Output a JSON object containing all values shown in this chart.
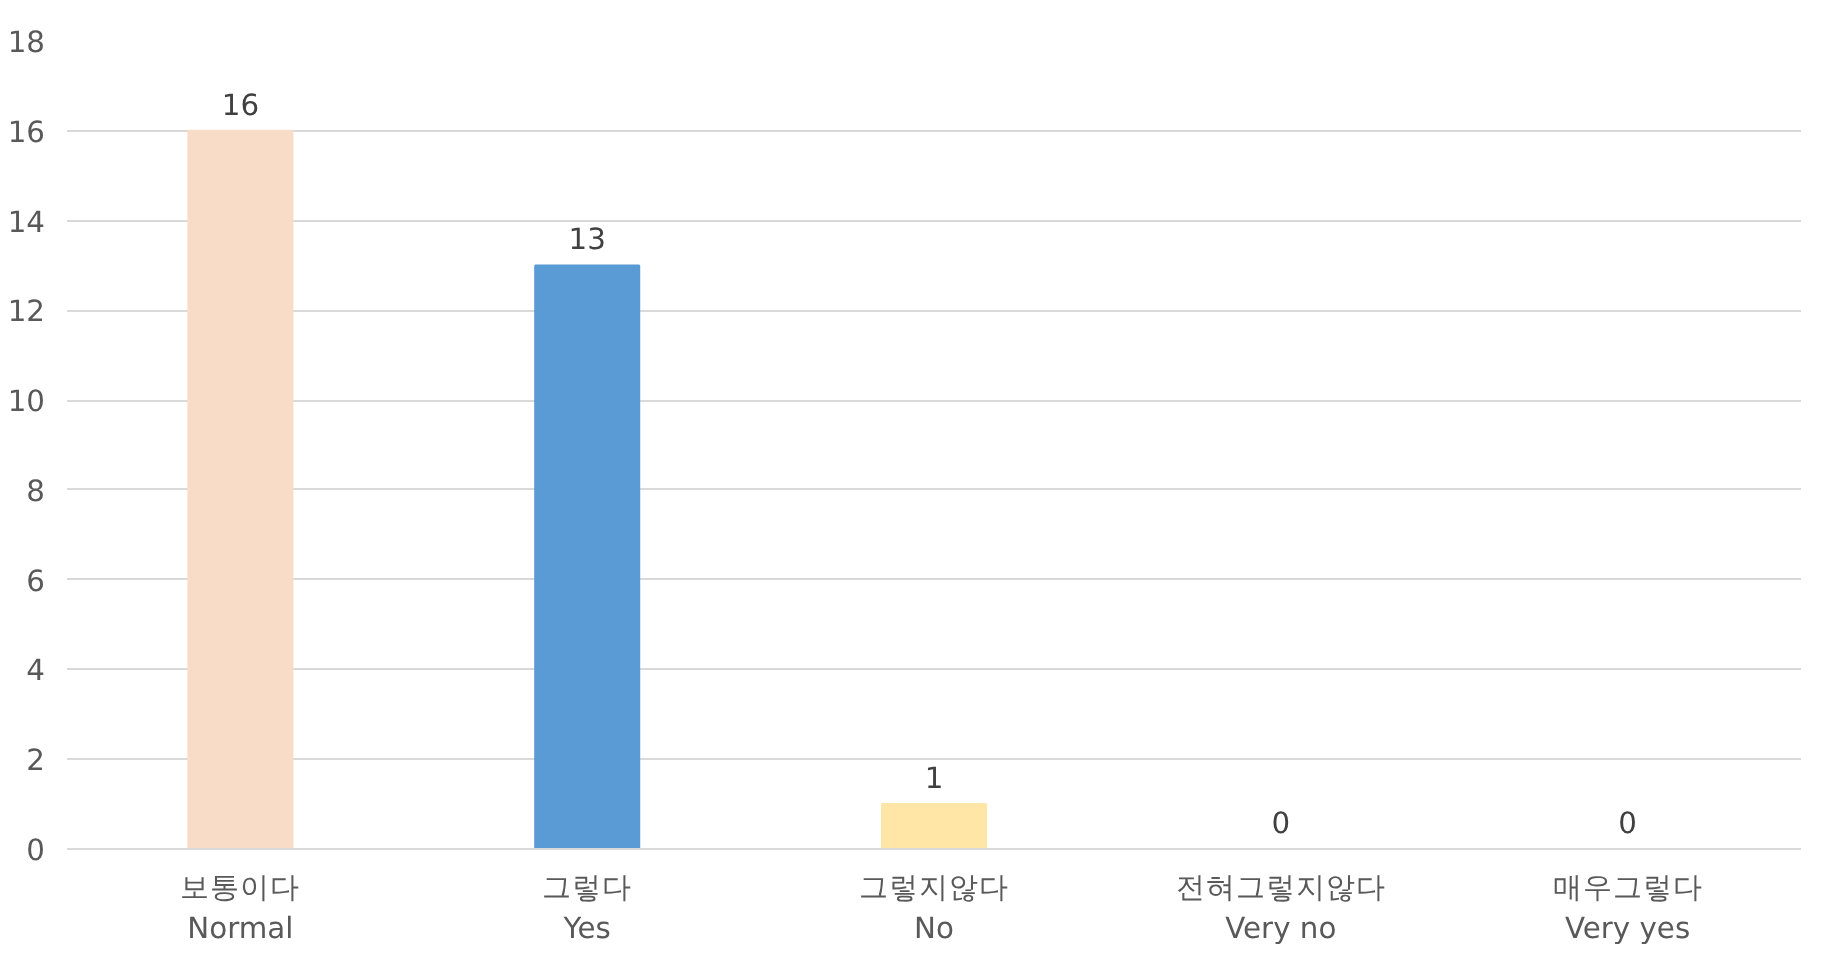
{
  "chart_data": {
    "type": "bar",
    "categories": [
      "보통이다\nNormal",
      "그렇다\nYes",
      "그렇지않다\nNo",
      "전혀그렇지않다\nVery no",
      "매우그렇다\nVery yes"
    ],
    "values": [
      16,
      13,
      1,
      0,
      0
    ],
    "colors": [
      "#f8dcc8",
      "#5b9bd5",
      "#ffe6a6",
      "#a5a5a5",
      "#4472c4"
    ],
    "ylim": [
      0,
      18
    ],
    "yticks": [
      0,
      2,
      4,
      6,
      8,
      10,
      12,
      14,
      16,
      18
    ],
    "grid": "y",
    "data_labels": true
  }
}
